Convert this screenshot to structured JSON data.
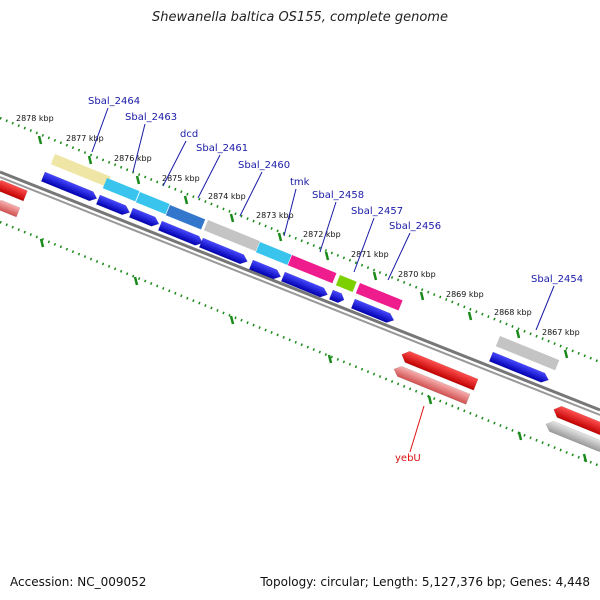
{
  "title": "Shewanella baltica OS155, complete genome",
  "footer": {
    "accession": "Accession: NC_009052",
    "summary": "Topology: circular; Length: 5,127,376 bp; Genes: 4,448"
  },
  "ruler": {
    "ticks": [
      {
        "label": "2878 kbp",
        "value": 2878
      },
      {
        "label": "2877 kbp",
        "value": 2877
      },
      {
        "label": "2876 kbp",
        "value": 2876
      },
      {
        "label": "2875 kbp",
        "value": 2875
      },
      {
        "label": "2874 kbp",
        "value": 2874
      },
      {
        "label": "2873 kbp",
        "value": 2873
      },
      {
        "label": "2872 kbp",
        "value": 2872
      },
      {
        "label": "2871 kbp",
        "value": 2871
      },
      {
        "label": "2870 kbp",
        "value": 2870
      },
      {
        "label": "2869 kbp",
        "value": 2869
      },
      {
        "label": "2868 kbp",
        "value": 2868
      },
      {
        "label": "2867 kbp",
        "value": 2867
      }
    ]
  },
  "genes": [
    {
      "name": "Sbal_2464",
      "color": "#1a1aa8"
    },
    {
      "name": "Sbal_2463",
      "color": "#1a1aa8"
    },
    {
      "name": "dcd",
      "color": "#1a1aa8"
    },
    {
      "name": "Sbal_2461",
      "color": "#1a1aa8"
    },
    {
      "name": "Sbal_2460",
      "color": "#1a1aa8"
    },
    {
      "name": "tmk",
      "color": "#1a1aa8"
    },
    {
      "name": "Sbal_2458",
      "color": "#1a1aa8"
    },
    {
      "name": "Sbal_2457",
      "color": "#1a1aa8"
    },
    {
      "name": "Sbal_2456",
      "color": "#1a1aa8"
    },
    {
      "name": "Sbal_2454",
      "color": "#1a1aa8"
    },
    {
      "name": "yebU",
      "color": "#dd1111"
    }
  ],
  "colors": {
    "forward_gene": "#1010e0",
    "reverse_gene": "#ee1111",
    "reverse_gene_light": "#f08080",
    "backbone": "#808080",
    "ruler_dots": "#1a8a1a"
  }
}
